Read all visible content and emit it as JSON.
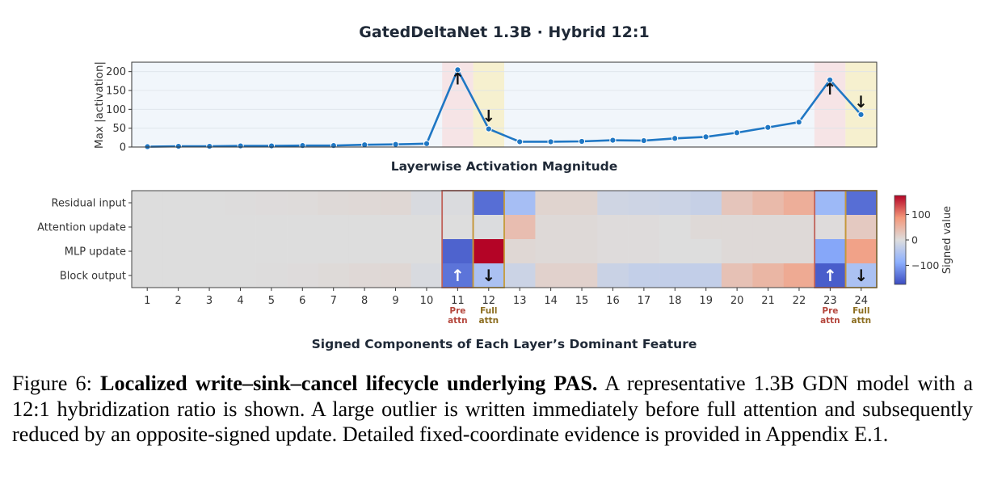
{
  "figure": {
    "title": "GatedDeltaNet 1.3B · Hybrid 12:1",
    "top_chart_title": "Layerwise Activation Magnitude",
    "bottom_chart_title": "Signed Components of Each Layer’s Dominant Feature",
    "colorbar_label": "Signed value",
    "accent_colors": {
      "line": "#1f77c4",
      "pre_attn": "#b5473d",
      "full_attn": "#8c6d1f",
      "pre_band": "#f6e4e6",
      "full_band": "#f6f0cf"
    }
  },
  "chart_data": [
    {
      "type": "line",
      "title": "Layerwise Activation Magnitude",
      "xlabel": "",
      "ylabel": "Max |activation|",
      "x": [
        1,
        2,
        3,
        4,
        5,
        6,
        7,
        8,
        9,
        10,
        11,
        12,
        13,
        14,
        15,
        16,
        17,
        18,
        19,
        20,
        21,
        22,
        23,
        24
      ],
      "series": [
        {
          "values": [
            1,
            2,
            2,
            3,
            3,
            4,
            4,
            6,
            7,
            9,
            205,
            48,
            14,
            14,
            15,
            18,
            17,
            23,
            27,
            38,
            52,
            66,
            178,
            86
          ]
        }
      ],
      "ylim": [
        0,
        225
      ],
      "yticks": [
        0,
        50,
        100,
        150,
        200
      ],
      "highlight_layers": {
        "pre_attn": [
          11,
          23
        ],
        "full_attn": [
          12,
          24
        ]
      },
      "markers": [
        {
          "layer": 11,
          "symbol": "↑"
        },
        {
          "layer": 12,
          "symbol": "↓"
        },
        {
          "layer": 23,
          "symbol": "↑"
        },
        {
          "layer": 24,
          "symbol": "↓"
        }
      ],
      "grid": true
    },
    {
      "type": "heatmap",
      "title": "Signed Components of Each Layer’s Dominant Feature",
      "rows": [
        "Residual input",
        "Attention update",
        "MLP update",
        "Block output"
      ],
      "columns": [
        "1",
        "2",
        "3",
        "4",
        "5",
        "6",
        "7",
        "8",
        "9",
        "10",
        "11",
        "12",
        "13",
        "14",
        "15",
        "16",
        "17",
        "18",
        "19",
        "20",
        "21",
        "22",
        "23",
        "24"
      ],
      "column_sublabels": {
        "11": "Pre\nattn",
        "12": "Full\nattn",
        "23": "Pre\nattn",
        "24": "Full\nattn"
      },
      "values": [
        [
          0,
          0,
          0,
          1,
          2,
          3,
          5,
          6,
          8,
          -6,
          -3,
          -145,
          -60,
          12,
          12,
          -15,
          -18,
          -20,
          -25,
          30,
          45,
          60,
          -70,
          -145
        ],
        [
          0,
          0,
          0,
          0,
          0,
          0,
          0,
          0,
          0,
          0,
          0,
          -2,
          40,
          5,
          5,
          2,
          2,
          0,
          5,
          5,
          5,
          5,
          2,
          25
        ],
        [
          0,
          0,
          0,
          0,
          0,
          0,
          0,
          0,
          0,
          0,
          -155,
          175,
          8,
          5,
          5,
          2,
          2,
          0,
          0,
          5,
          5,
          5,
          -95,
          75
        ],
        [
          0,
          0,
          0,
          0,
          1,
          2,
          4,
          6,
          8,
          -6,
          -140,
          -55,
          -20,
          15,
          15,
          -22,
          -28,
          -30,
          -30,
          35,
          50,
          65,
          -160,
          -55
        ]
      ],
      "cell_markers": [
        {
          "row": 3,
          "column": "11",
          "symbol": "↑"
        },
        {
          "row": 3,
          "column": "12",
          "symbol": "↓"
        },
        {
          "row": 3,
          "column": "23",
          "symbol": "↑"
        },
        {
          "row": 3,
          "column": "24",
          "symbol": "↓"
        }
      ],
      "boxed_columns": {
        "pre_attn": [
          "11",
          "23"
        ],
        "full_attn": [
          "12",
          "24"
        ]
      },
      "colorbar": {
        "label": "Signed value",
        "range": [
          -175,
          175
        ],
        "ticks": [
          -100,
          0,
          100
        ],
        "colormap": "coolwarm"
      }
    }
  ],
  "caption": {
    "label": "Figure 6:",
    "bold": "Localized write–sink–cancel lifecycle underlying PAS.",
    "text": "A representative 1.3B GDN model with a 12:1 hybridization ratio is shown. A large outlier is written immediately before full attention and subsequently reduced by an opposite-signed update. Detailed fixed-coordinate evidence is provided in Appendix E.1."
  }
}
